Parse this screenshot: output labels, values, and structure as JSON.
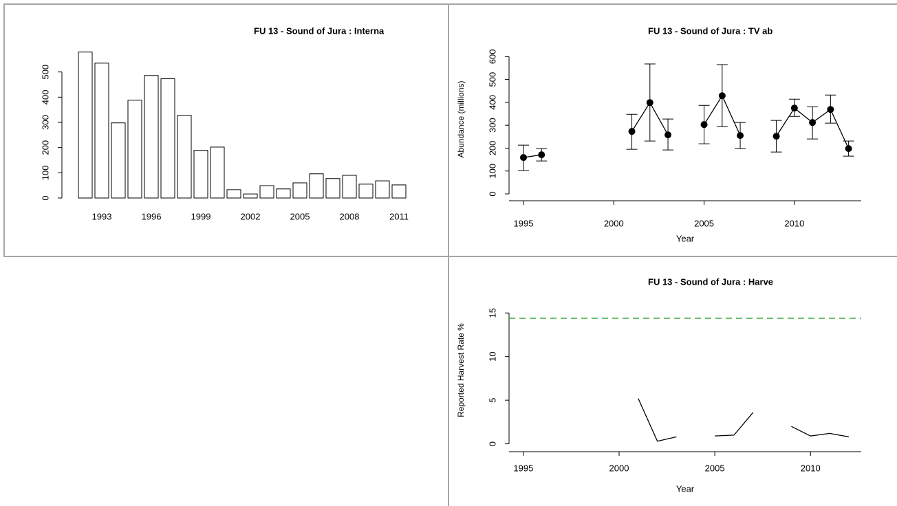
{
  "chart_data": [
    {
      "type": "bar",
      "title": "FU 13 - Sound of Jura : Interna",
      "categories": [
        null,
        "1993",
        null,
        null,
        "1996",
        null,
        null,
        "1999",
        null,
        null,
        "2002",
        null,
        null,
        "2005",
        null,
        null,
        "2008",
        null,
        null,
        "2011"
      ],
      "values": [
        579,
        535,
        298,
        388,
        486,
        473,
        328,
        189,
        202,
        33,
        16,
        49,
        36,
        60,
        96,
        77,
        90,
        55,
        68,
        52
      ],
      "color": "#ffffff",
      "edge_color": "#000000",
      "ylim": [
        0,
        600
      ],
      "yticks": [
        0,
        100,
        200,
        300,
        400,
        500
      ]
    },
    {
      "type": "line",
      "title": "FU 13 - Sound of Jura  :  TV ab",
      "xlabel": "Year",
      "ylabel": "Abundance (millions)",
      "x": [
        1995,
        1996,
        1997,
        1998,
        1999,
        2000,
        2001,
        2002,
        2003,
        2004,
        2005,
        2006,
        2007,
        2008,
        2009,
        2010,
        2011,
        2012,
        2013
      ],
      "values": [
        159,
        171,
        null,
        null,
        null,
        null,
        273,
        399,
        258,
        null,
        303,
        429,
        255,
        null,
        252,
        375,
        312,
        369,
        198
      ],
      "lower": [
        102,
        144,
        null,
        null,
        null,
        null,
        195,
        231,
        192,
        null,
        219,
        294,
        198,
        null,
        183,
        339,
        240,
        309,
        165
      ],
      "upper": [
        213,
        198,
        null,
        null,
        null,
        null,
        348,
        568,
        327,
        null,
        387,
        565,
        312,
        null,
        321,
        414,
        381,
        432,
        231
      ],
      "color": "#000000",
      "markers": true,
      "xlim": [
        1994.2,
        2013.7
      ],
      "xticks": [
        1995,
        2000,
        2005,
        2010
      ],
      "ylim": [
        -30,
        622
      ],
      "yticks": [
        0,
        100,
        200,
        300,
        400,
        500,
        600
      ]
    },
    {
      "type": "line",
      "title": "FU 13 - Sound of Jura  :  Harve",
      "xlabel": "Year",
      "ylabel": "Reported Harvest Rate %",
      "x": [
        2001,
        2002,
        2003,
        2004,
        2005,
        2006,
        2007,
        2008,
        2009,
        2010,
        2011,
        2012
      ],
      "values": [
        5.2,
        0.3,
        0.8,
        null,
        0.9,
        1.0,
        3.6,
        null,
        2.0,
        0.9,
        1.2,
        0.8
      ],
      "color": "#000000",
      "markers": false,
      "hline": {
        "value": 14.4,
        "color": "#2ca02c",
        "style": "dashed"
      },
      "xlim": [
        1994.25,
        2012.65
      ],
      "xticks": [
        1995,
        2000,
        2005,
        2010
      ],
      "ylim": [
        -0.9,
        16.2
      ],
      "yticks": [
        0,
        5,
        10,
        15
      ]
    }
  ]
}
